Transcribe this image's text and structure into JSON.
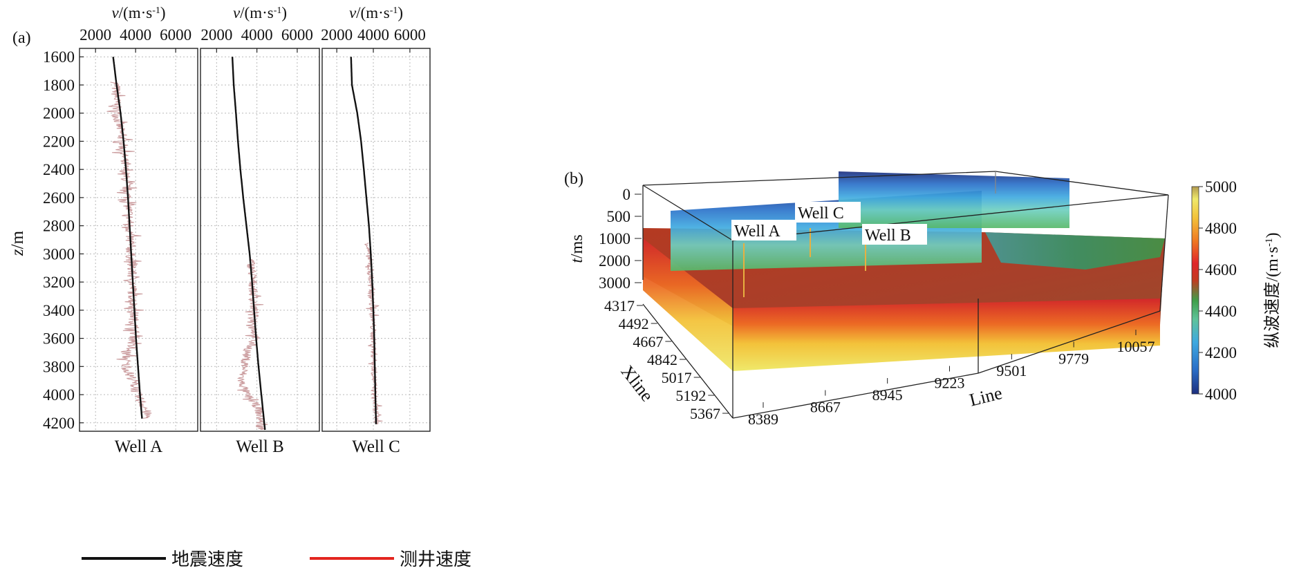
{
  "colors": {
    "seismic": "#111111",
    "well_log": "#c9999b",
    "legend_red": "#e3251f",
    "grid": "#b8b8b8",
    "colormap": [
      "#1d2f7e",
      "#2a6fc8",
      "#3fa9e0",
      "#5fc39a",
      "#3f9f4a",
      "#c33a20",
      "#e0262a",
      "#f07a22",
      "#f3c23a",
      "#efe96b",
      "#b39a4f"
    ]
  },
  "chart_data": [
    {
      "panel_label": "(a)",
      "type": "line",
      "xlabel": "v/(m·s⁻¹)",
      "xlabel_parts": {
        "var": "v",
        "unit": "/(m·s",
        "sup": "-1",
        "close": ")"
      },
      "ylabel": "z/m",
      "ylabel_parts": {
        "var": "z",
        "unit": "/m"
      },
      "xlim": [
        1200,
        7100
      ],
      "ylim": [
        1540,
        4260
      ],
      "x_ticks": [
        2000,
        4000,
        6000
      ],
      "y_ticks": [
        1600,
        1800,
        2000,
        2200,
        2400,
        2600,
        2800,
        3000,
        3200,
        3400,
        3600,
        3800,
        4000,
        4200
      ],
      "grid": true,
      "legend_position": "bottom",
      "legend": [
        {
          "label": "地震速度",
          "color": "#111111"
        },
        {
          "label": "测井速度",
          "color": "#e3251f"
        }
      ],
      "wells": [
        {
          "name": "Well A",
          "seismic": {
            "z": [
              1600,
              1800,
              2000,
              2200,
              2400,
              2600,
              2800,
              3000,
              3200,
              3400,
              3600,
              3800,
              4000,
              4170
            ],
            "v": [
              2880,
              3050,
              3250,
              3400,
              3520,
              3620,
              3700,
              3780,
              3860,
              3940,
              4020,
              4120,
              4220,
              4320
            ]
          },
          "log": {
            "z_start": 1780,
            "z_end": 4170,
            "base": {
              "z": [
                1780,
                2000,
                2200,
                2400,
                2600,
                2800,
                3000,
                3200,
                3400,
                3600,
                3700,
                3800,
                3900,
                4000,
                4100,
                4170
              ],
              "v": [
                3000,
                3050,
                3350,
                3450,
                3600,
                3700,
                3750,
                3830,
                3900,
                3950,
                3550,
                3500,
                3900,
                4050,
                4500,
                4600
              ]
            },
            "jitter": 260
          }
        },
        {
          "name": "Well B",
          "seismic": {
            "z": [
              1600,
              1800,
              2000,
              2200,
              2400,
              2600,
              2800,
              3000,
              3200,
              3400,
              3600,
              3800,
              4000,
              4250
            ],
            "v": [
              2780,
              2850,
              2960,
              3060,
              3180,
              3320,
              3480,
              3640,
              3760,
              3860,
              3960,
              4080,
              4220,
              4400
            ]
          },
          "log": {
            "z_start": 3040,
            "z_end": 4250,
            "base": {
              "z": [
                3040,
                3200,
                3400,
                3600,
                3700,
                3800,
                3900,
                4000,
                4100,
                4250
              ],
              "v": [
                3700,
                3800,
                3850,
                3900,
                3500,
                3400,
                3200,
                3500,
                4100,
                4200
              ]
            },
            "jitter": 230
          }
        },
        {
          "name": "Well C",
          "seismic": {
            "z": [
              1600,
              1800,
              2000,
              2200,
              2400,
              2600,
              2800,
              3000,
              3200,
              3400,
              3600,
              3800,
              4000,
              4210
            ],
            "v": [
              2780,
              2830,
              3120,
              3330,
              3480,
              3620,
              3760,
              3860,
              3940,
              4000,
              4050,
              4080,
              4110,
              4150
            ]
          },
          "log": {
            "z_start": 2920,
            "z_end": 4210,
            "base": {
              "z": [
                2920,
                3000,
                3200,
                3400,
                3600,
                3800,
                4000,
                4210
              ],
              "v": [
                3700,
                3750,
                3850,
                3950,
                4000,
                4050,
                4050,
                4200
              ]
            },
            "jitter": 170
          }
        }
      ]
    },
    {
      "panel_label": "(b)",
      "type": "heatmap",
      "tlabel": "t/ms",
      "tlabel_parts": {
        "var": "t",
        "unit": "/ms"
      },
      "xline_label": "Xline",
      "line_label": "Line",
      "t_ticks": [
        "0",
        "500",
        "1000",
        "2000",
        "3000"
      ],
      "xline_ticks": [
        "4317",
        "4492",
        "4667",
        "4842",
        "5017",
        "5192",
        "5367"
      ],
      "line_ticks": [
        "8389",
        "8667",
        "8945",
        "9223",
        "9501",
        "9779",
        "10057"
      ],
      "well_labels": [
        "Well A",
        "Well C",
        "Well B"
      ],
      "colorbar": {
        "label": "纵波速度/(m·s⁻¹)",
        "label_parts": {
          "text": "纵波速度/(m·s",
          "sup": "-1",
          "close": ")"
        },
        "ticks": [
          4000,
          4200,
          4400,
          4600,
          4800,
          5000
        ],
        "range": [
          4000,
          5000
        ]
      }
    }
  ]
}
